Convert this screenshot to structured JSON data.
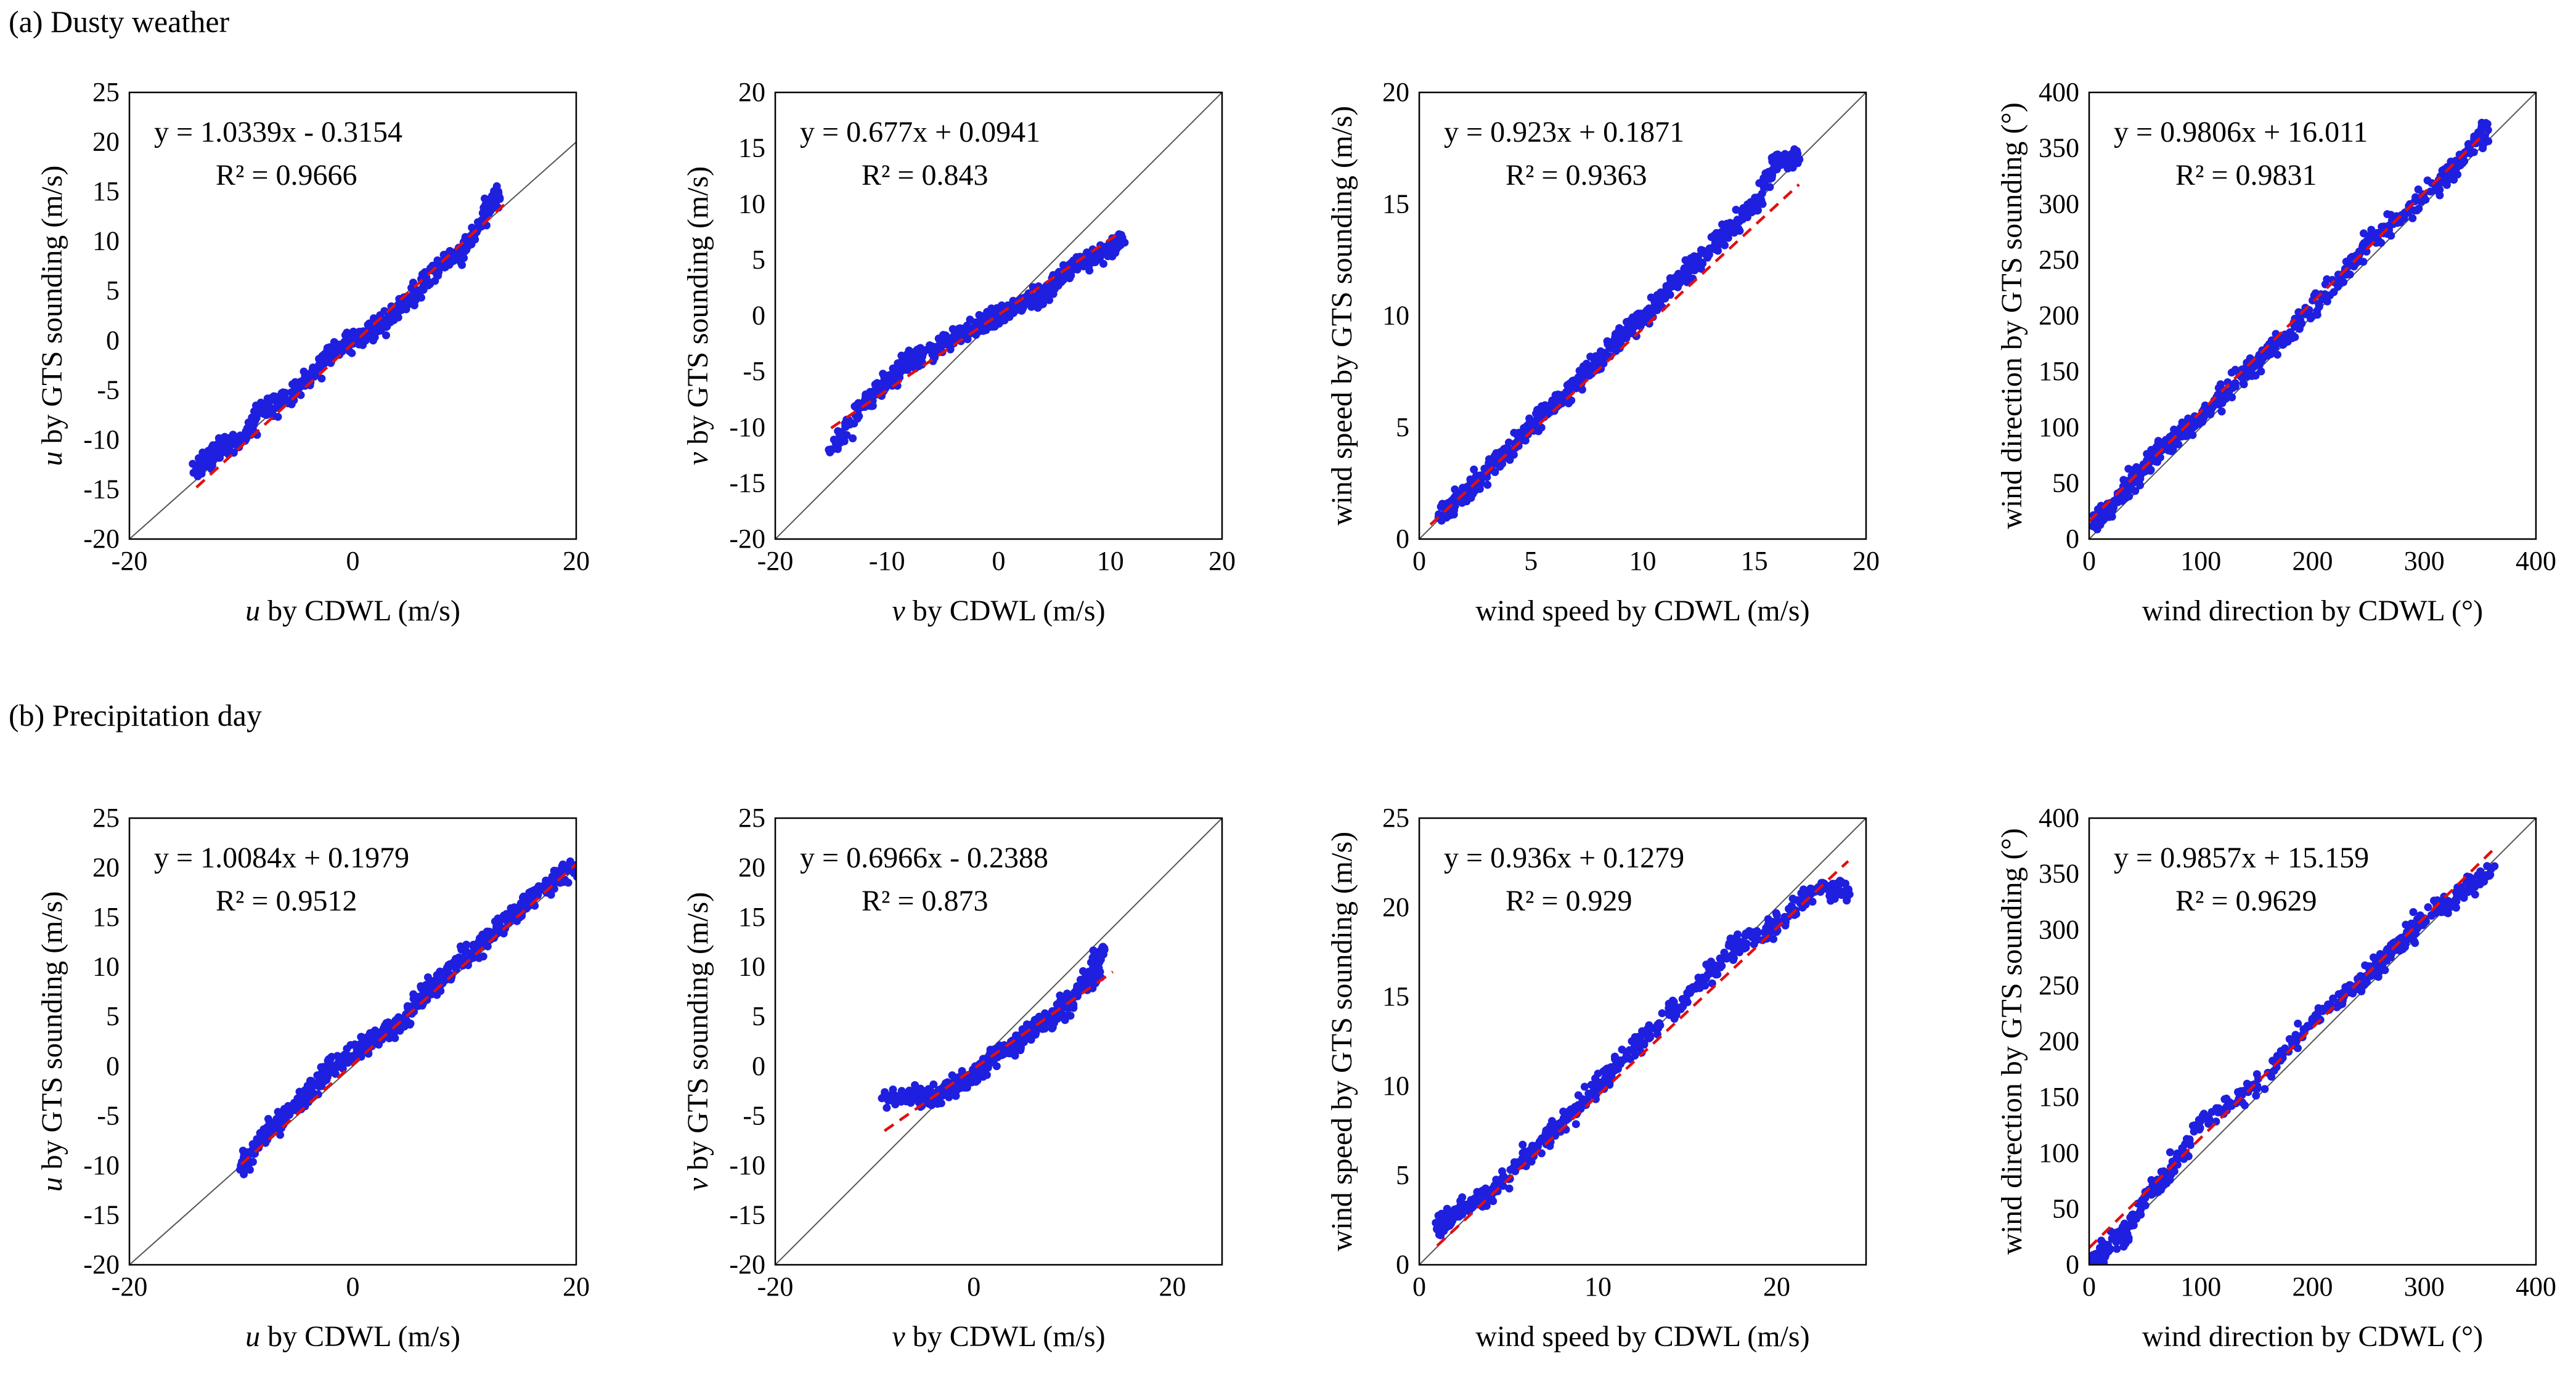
{
  "figure": {
    "rows": [
      {
        "title": "(a) Dusty weather"
      },
      {
        "title": "(b) Precipitation day"
      }
    ],
    "colors": {
      "points": "#1f1fe0",
      "fit": "#e01010",
      "one_to_one": "#555555",
      "frame": "#000000"
    }
  },
  "chart_data": [
    {
      "type": "scatter",
      "row": 0,
      "col": 0,
      "xlabel_var": "u",
      "xlabel_rest": " by CDWL (m/s)",
      "ylabel_var": "u",
      "ylabel_rest": " by GTS sounding (m/s)",
      "xlim": [
        -20,
        20
      ],
      "ylim": [
        -20,
        25
      ],
      "xticks": [
        -20,
        0,
        20
      ],
      "yticks": [
        -20,
        -15,
        -10,
        -5,
        0,
        5,
        10,
        15,
        20,
        25
      ],
      "equation": "y = 1.0339x - 0.3154",
      "r2": "R² = 0.9666",
      "fit": {
        "slope": 1.0339,
        "intercept": -0.3154,
        "xrange": [
          -14,
          14
        ]
      },
      "points": [
        [
          -14,
          -13
        ],
        [
          -13,
          -12
        ],
        [
          -12,
          -11
        ],
        [
          -10,
          -10
        ],
        [
          -8,
          -7
        ],
        [
          -6,
          -6
        ],
        [
          -4,
          -4
        ],
        [
          -2,
          -1
        ],
        [
          0,
          0
        ],
        [
          2,
          1
        ],
        [
          4,
          3
        ],
        [
          6,
          5
        ],
        [
          8,
          8
        ],
        [
          10,
          9
        ],
        [
          12,
          13
        ],
        [
          13,
          15
        ]
      ]
    },
    {
      "type": "scatter",
      "row": 0,
      "col": 1,
      "xlabel_var": "v",
      "xlabel_rest": " by CDWL (m/s)",
      "ylabel_var": "v",
      "ylabel_rest": " by GTS sounding (m/s)",
      "xlim": [
        -20,
        20
      ],
      "ylim": [
        -20,
        20
      ],
      "xticks": [
        -20,
        -10,
        0,
        10,
        20
      ],
      "yticks": [
        -20,
        -15,
        -10,
        -5,
        0,
        5,
        10,
        15,
        20
      ],
      "equation": "y = 0.677x + 0.0941",
      "r2": "R² = 0.843",
      "fit": {
        "slope": 0.677,
        "intercept": 0.0941,
        "xrange": [
          -15,
          11
        ]
      },
      "points": [
        [
          -15,
          -12
        ],
        [
          -12,
          -8
        ],
        [
          -10,
          -6
        ],
        [
          -8,
          -4
        ],
        [
          -6,
          -3
        ],
        [
          -4,
          -2
        ],
        [
          -2,
          -1
        ],
        [
          0,
          0
        ],
        [
          2,
          1
        ],
        [
          4,
          2
        ],
        [
          6,
          4
        ],
        [
          8,
          5
        ],
        [
          10,
          6
        ],
        [
          11,
          7
        ]
      ]
    },
    {
      "type": "scatter",
      "row": 0,
      "col": 2,
      "xlabel_var": "",
      "xlabel_rest": "wind speed by CDWL (m/s)",
      "ylabel_var": "",
      "ylabel_rest": "wind speed by GTS sounding (m/s)",
      "xlim": [
        0,
        20
      ],
      "ylim": [
        0,
        20
      ],
      "xticks": [
        0,
        5,
        10,
        15,
        20
      ],
      "yticks": [
        0,
        5,
        10,
        15,
        20
      ],
      "equation": "y = 0.923x + 0.1871",
      "r2": "R² = 0.9363",
      "fit": {
        "slope": 0.923,
        "intercept": 0.1871,
        "xrange": [
          0.5,
          17
        ]
      },
      "points": [
        [
          1,
          1
        ],
        [
          2,
          2
        ],
        [
          3,
          3
        ],
        [
          4,
          4
        ],
        [
          5,
          5
        ],
        [
          6,
          6
        ],
        [
          7,
          7
        ],
        [
          8,
          8
        ],
        [
          9,
          9
        ],
        [
          10,
          10
        ],
        [
          11,
          11
        ],
        [
          12,
          12
        ],
        [
          13,
          13
        ],
        [
          14,
          14
        ],
        [
          15,
          15
        ],
        [
          16,
          17
        ],
        [
          17,
          17
        ]
      ]
    },
    {
      "type": "scatter",
      "row": 0,
      "col": 3,
      "xlabel_var": "",
      "xlabel_rest": "wind direction by CDWL (°)",
      "ylabel_var": "",
      "ylabel_rest": "wind direction by GTS sounding (°)",
      "xlim": [
        0,
        400
      ],
      "ylim": [
        0,
        400
      ],
      "xticks": [
        0,
        100,
        200,
        300,
        400
      ],
      "yticks": [
        0,
        50,
        100,
        150,
        200,
        250,
        300,
        350,
        400
      ],
      "equation": "y = 0.9806x + 16.011",
      "r2": "R² = 0.9831",
      "fit": {
        "slope": 0.9806,
        "intercept": 16.011,
        "xrange": [
          0,
          355
        ]
      },
      "points": [
        [
          5,
          15
        ],
        [
          20,
          30
        ],
        [
          40,
          55
        ],
        [
          60,
          75
        ],
        [
          80,
          95
        ],
        [
          100,
          110
        ],
        [
          120,
          130
        ],
        [
          150,
          160
        ],
        [
          180,
          185
        ],
        [
          220,
          230
        ],
        [
          250,
          265
        ],
        [
          280,
          290
        ],
        [
          320,
          325
        ],
        [
          350,
          360
        ],
        [
          355,
          365
        ]
      ]
    },
    {
      "type": "scatter",
      "row": 1,
      "col": 0,
      "xlabel_var": "u",
      "xlabel_rest": " by CDWL (m/s)",
      "ylabel_var": "u",
      "ylabel_rest": " by GTS sounding (m/s)",
      "xlim": [
        -20,
        20
      ],
      "ylim": [
        -20,
        25
      ],
      "xticks": [
        -20,
        0,
        20
      ],
      "yticks": [
        -20,
        -15,
        -10,
        -5,
        0,
        5,
        10,
        15,
        20,
        25
      ],
      "equation": "y = 1.0084x + 0.1979",
      "r2": "R² = 0.9512",
      "fit": {
        "slope": 1.0084,
        "intercept": 0.1979,
        "xrange": [
          -10,
          20
        ]
      },
      "points": [
        [
          -10,
          -10
        ],
        [
          -8,
          -7
        ],
        [
          -6,
          -5
        ],
        [
          -4,
          -3
        ],
        [
          -2,
          0
        ],
        [
          0,
          1
        ],
        [
          2,
          3
        ],
        [
          4,
          4
        ],
        [
          6,
          7
        ],
        [
          8,
          9
        ],
        [
          10,
          11
        ],
        [
          12,
          13
        ],
        [
          14,
          15
        ],
        [
          16,
          17
        ],
        [
          18,
          19
        ],
        [
          20,
          20
        ]
      ]
    },
    {
      "type": "scatter",
      "row": 1,
      "col": 1,
      "xlabel_var": "v",
      "xlabel_rest": " by CDWL (m/s)",
      "ylabel_var": "v",
      "ylabel_rest": " by GTS sounding (m/s)",
      "xlim": [
        -20,
        25
      ],
      "ylim": [
        -20,
        25
      ],
      "xticks": [
        -20,
        0,
        20
      ],
      "yticks": [
        -20,
        -15,
        -10,
        -5,
        0,
        5,
        10,
        15,
        20,
        25
      ],
      "equation": "y = 0.6966x - 0.2388",
      "r2": "R² = 0.873",
      "fit": {
        "slope": 0.6966,
        "intercept": -0.2388,
        "xrange": [
          -9,
          14
        ]
      },
      "points": [
        [
          -9,
          -3
        ],
        [
          -6,
          -3
        ],
        [
          -4,
          -3
        ],
        [
          -2,
          -2
        ],
        [
          0,
          -1
        ],
        [
          2,
          1
        ],
        [
          4,
          2
        ],
        [
          6,
          4
        ],
        [
          8,
          5
        ],
        [
          10,
          7
        ],
        [
          12,
          9
        ],
        [
          13,
          12
        ]
      ]
    },
    {
      "type": "scatter",
      "row": 1,
      "col": 2,
      "xlabel_var": "",
      "xlabel_rest": "wind speed by CDWL (m/s)",
      "ylabel_var": "",
      "ylabel_rest": "wind speed by GTS sounding (m/s)",
      "xlim": [
        0,
        25
      ],
      "ylim": [
        0,
        25
      ],
      "xticks": [
        0,
        10,
        20
      ],
      "yticks": [
        0,
        5,
        10,
        15,
        20,
        25
      ],
      "equation": "y = 0.936x + 0.1279",
      "r2": "R² = 0.929",
      "fit": {
        "slope": 0.936,
        "intercept": 0.1279,
        "xrange": [
          1,
          24
        ]
      },
      "points": [
        [
          1,
          2
        ],
        [
          2,
          3
        ],
        [
          4,
          4
        ],
        [
          6,
          6
        ],
        [
          8,
          8
        ],
        [
          10,
          10
        ],
        [
          12,
          12
        ],
        [
          14,
          14
        ],
        [
          16,
          16
        ],
        [
          18,
          18
        ],
        [
          20,
          19
        ],
        [
          22,
          21
        ],
        [
          24,
          21
        ]
      ]
    },
    {
      "type": "scatter",
      "row": 1,
      "col": 3,
      "xlabel_var": "",
      "xlabel_rest": "wind direction by CDWL (°)",
      "ylabel_var": "",
      "ylabel_rest": "wind direction by GTS sounding (°)",
      "xlim": [
        0,
        400
      ],
      "ylim": [
        0,
        400
      ],
      "xticks": [
        0,
        100,
        200,
        300,
        400
      ],
      "yticks": [
        0,
        50,
        100,
        150,
        200,
        250,
        300,
        350,
        400
      ],
      "equation": "y = 0.9857x + 15.159",
      "r2": "R² = 0.9629",
      "fit": {
        "slope": 0.9857,
        "intercept": 15.159,
        "xrange": [
          0,
          365
        ]
      },
      "points": [
        [
          5,
          5
        ],
        [
          30,
          25
        ],
        [
          50,
          60
        ],
        [
          70,
          80
        ],
        [
          100,
          130
        ],
        [
          150,
          160
        ],
        [
          200,
          220
        ],
        [
          240,
          250
        ],
        [
          260,
          270
        ],
        [
          280,
          290
        ],
        [
          300,
          310
        ],
        [
          330,
          330
        ],
        [
          360,
          355
        ]
      ]
    }
  ]
}
